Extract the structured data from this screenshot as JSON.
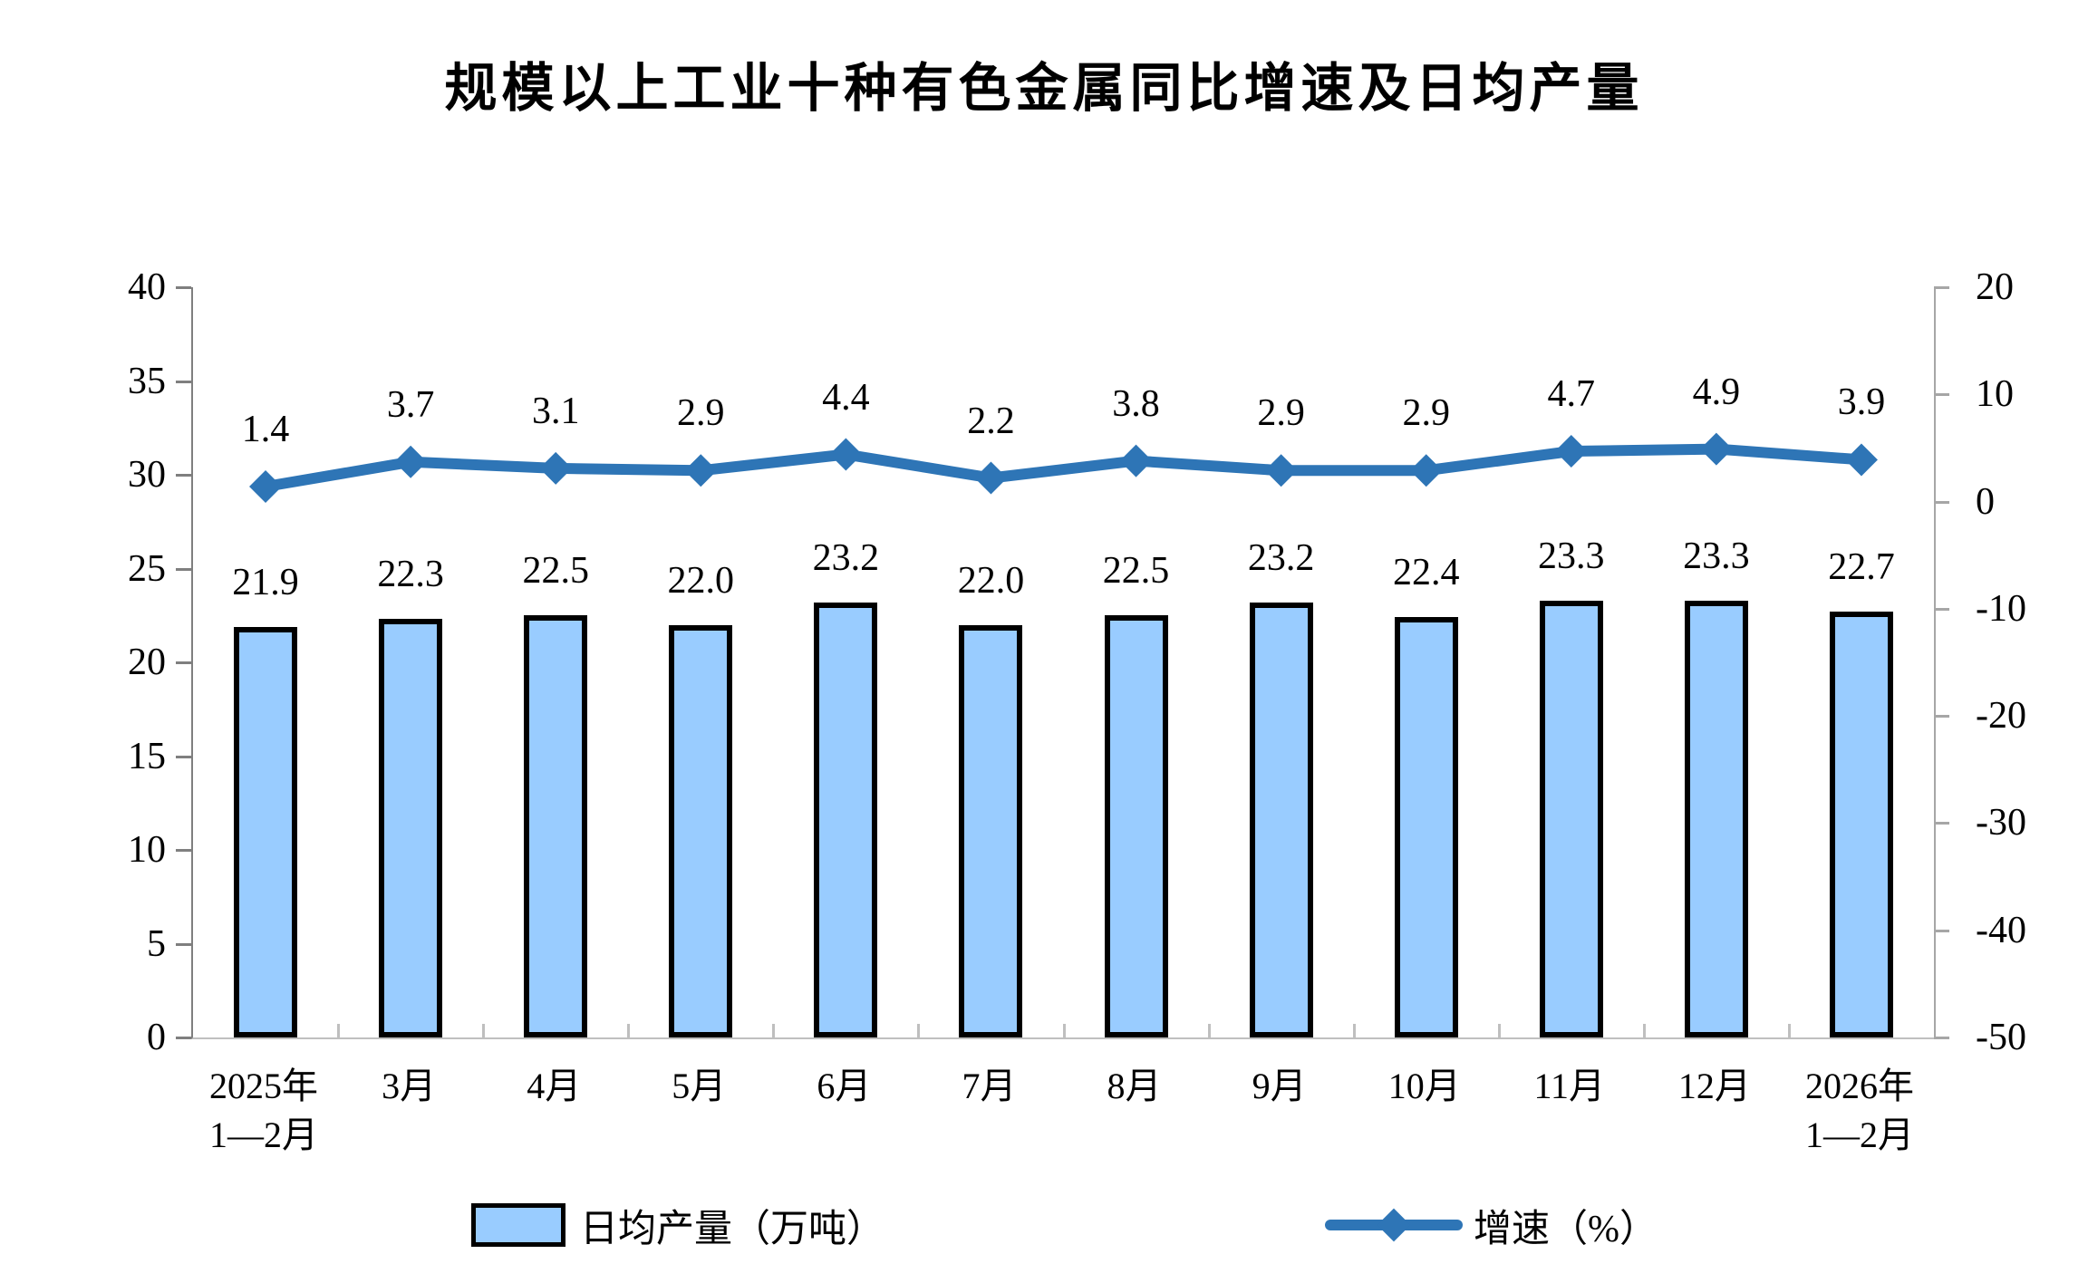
{
  "chart_data": {
    "type": "combo (bar + line, dual axis)",
    "title": "规模以上工业十种有色金属同比增速及日均产量",
    "categories": [
      "2025年\n1—2月",
      "3月",
      "4月",
      "5月",
      "6月",
      "7月",
      "8月",
      "9月",
      "10月",
      "11月",
      "12月",
      "2026年\n1—2月"
    ],
    "series": [
      {
        "name": "日均产量（万吨）",
        "type": "bar",
        "axis": "left",
        "unit": "万吨",
        "values": [
          21.9,
          22.3,
          22.5,
          22.0,
          23.2,
          22.0,
          22.5,
          23.2,
          22.4,
          23.3,
          23.3,
          22.7
        ],
        "fill": "#99CCFF",
        "stroke": "#000000"
      },
      {
        "name": "增速（%）",
        "type": "line",
        "axis": "right",
        "unit": "%",
        "values": [
          1.4,
          3.7,
          3.1,
          2.9,
          4.4,
          2.2,
          3.8,
          2.9,
          2.9,
          4.7,
          4.9,
          3.9
        ],
        "color": "#2E75B6",
        "marker": "diamond"
      }
    ],
    "left_axis": {
      "min": 0,
      "max": 40,
      "step": 5,
      "tick_labels": [
        "40",
        "35",
        "30",
        "25",
        "20",
        "15",
        "10",
        "5",
        "0"
      ]
    },
    "right_axis": {
      "min": -50,
      "max": 20,
      "step": 10,
      "tick_labels": [
        "20",
        "10",
        "0",
        "-10",
        "-20",
        "-30",
        "-40",
        "-50"
      ]
    },
    "grid": false,
    "data_labels": true,
    "legend": {
      "position": "bottom",
      "items": [
        {
          "label": "日均产量（万吨）",
          "marker": "bar-swatch"
        },
        {
          "label": "增速（%）",
          "marker": "line-diamond"
        }
      ]
    },
    "colors": {
      "bar_fill": "#99CCFF",
      "bar_border": "#000000",
      "line": "#2E75B6",
      "left_axis_line": "#7f7f7f",
      "right_axis_line": "#a6a6a6",
      "x_axis_line": "#bfbfbf",
      "text": "#000000",
      "background": "#FFFFFF"
    }
  }
}
